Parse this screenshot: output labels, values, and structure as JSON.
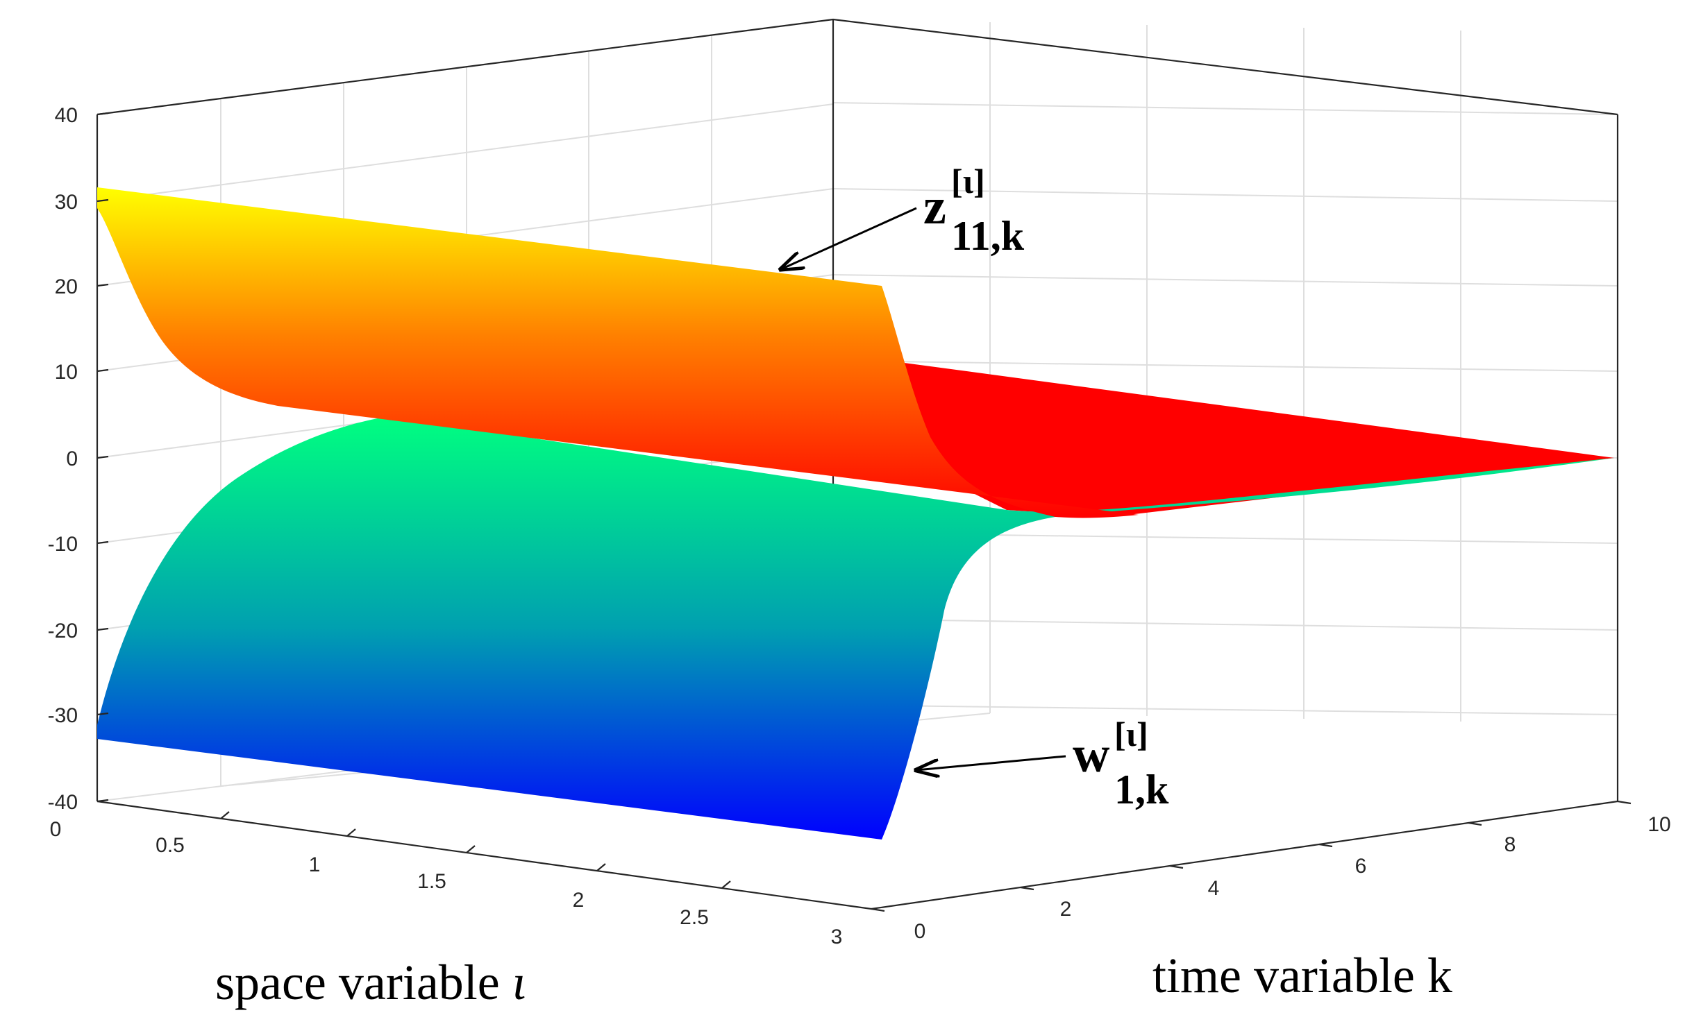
{
  "chart_data": {
    "type": "surface",
    "xlabel_prefix": "space variable ",
    "xlabel_symbol": "ι",
    "ylabel": "time variable k",
    "zlabel": "",
    "xlim": [
      0,
      3
    ],
    "ylim": [
      0,
      10
    ],
    "zlim": [
      -40,
      40
    ],
    "x_ticks": [
      "0",
      "0.5",
      "1",
      "1.5",
      "2",
      "2.5",
      "3"
    ],
    "y_ticks": [
      "0",
      "2",
      "4",
      "6",
      "8",
      "10"
    ],
    "z_ticks": [
      "40",
      "30",
      "20",
      "10",
      "0",
      "-10",
      "-20",
      "-30",
      "-40"
    ],
    "grid": true,
    "colors": {
      "upper_surface": [
        "#ff0000",
        "#ff8000",
        "#ffff00"
      ],
      "lower_surface": [
        "#0000ff",
        "#00a0b0",
        "#00ff80"
      ]
    },
    "surfaces": [
      {
        "id": "z",
        "description_values_k": [
          0,
          1,
          2,
          3,
          4,
          5,
          6,
          7,
          8,
          9,
          10
        ],
        "values_at_iota_0": [
          32,
          8,
          2,
          0.5,
          0.1,
          0,
          0,
          0,
          0,
          0,
          0
        ]
      },
      {
        "id": "w",
        "description_values_k": [
          0,
          1,
          2,
          3,
          4,
          5,
          6,
          7,
          8,
          9,
          10
        ],
        "values_at_iota_0": [
          -32,
          -8,
          -2,
          -0.5,
          -0.1,
          0,
          0,
          0,
          0,
          0,
          0
        ]
      }
    ],
    "annotations": [
      {
        "id": "z-label",
        "main": "z",
        "superscript": "[ι]",
        "subscript": "11,k"
      },
      {
        "id": "w-label",
        "main": "w",
        "superscript": "[ι]",
        "subscript": "1,k"
      }
    ]
  }
}
